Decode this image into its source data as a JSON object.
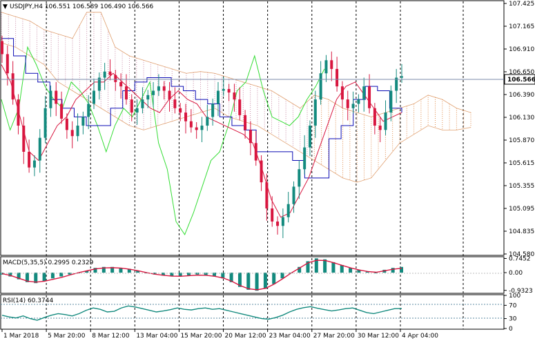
{
  "chart_data": [
    {
      "type": "candlestick",
      "title": "USDJPY,H4  106.551 106.589 106.490 106.566",
      "symbol": "USDJPY,H4",
      "ohlc_header": [
        "106.551",
        "106.589",
        "106.490",
        "106.566"
      ],
      "current_price": 106.566,
      "current_price_label": "106.566",
      "ylim": [
        104.52,
        107.425
      ],
      "y_ticks": [
        "107.425",
        "107.165",
        "106.910",
        "106.650",
        "106.390",
        "106.130",
        "105.870",
        "105.615",
        "105.355",
        "105.095",
        "104.835",
        "104.580"
      ],
      "x_ticks": [
        "1 Mar 2018",
        "5 Mar 20:00",
        "8 Mar 12:00",
        "13 Mar 04:00",
        "15 Mar 20:00",
        "20 Mar 12:00",
        "23 Mar 04:00",
        "27 Mar 20:00",
        "30 Mar 12:00",
        "4 Apr 04:00"
      ],
      "grid": true,
      "indicator": "Ichimoku",
      "colors": {
        "bull": "#138a7e",
        "bear": "#d8163f",
        "tenkan": "#d8163f",
        "kijun": "#0a0ab4",
        "chikou": "#33dd33",
        "cloud_bull": "#e08a4a",
        "cloud_bear": "#c88aa6",
        "price_line": "#7a8aa8"
      },
      "close_series": [
        106.82,
        106.6,
        106.3,
        106.0,
        105.7,
        105.52,
        105.6,
        105.86,
        106.2,
        106.4,
        106.25,
        106.08,
        105.95,
        105.88,
        106.0,
        106.1,
        106.25,
        106.4,
        106.55,
        106.62,
        106.58,
        106.5,
        106.45,
        106.3,
        106.15,
        106.2,
        106.3,
        106.35,
        106.4,
        106.45,
        106.4,
        106.3,
        106.2,
        106.15,
        106.05,
        105.98,
        105.95,
        106.0,
        106.1,
        106.25,
        106.4,
        106.42,
        106.38,
        106.3,
        106.12,
        105.95,
        105.8,
        105.6,
        105.35,
        105.05,
        104.9,
        104.85,
        104.95,
        105.1,
        105.3,
        105.5,
        105.75,
        106.0,
        106.3,
        106.6,
        106.75,
        106.65,
        106.45,
        106.3,
        106.2,
        106.25,
        106.3,
        106.45,
        106.2,
        106.0,
        105.95,
        106.15,
        106.4,
        106.55,
        106.566
      ],
      "tenkan_series": [
        106.7,
        106.5,
        106.1,
        105.7,
        105.6,
        105.8,
        106.0,
        106.1,
        106.3,
        106.4,
        106.5,
        106.5,
        106.6,
        106.5,
        106.4,
        106.3,
        106.2,
        106.15,
        106.3,
        106.4,
        106.3,
        106.25,
        106.1,
        106.05,
        106.0,
        105.95,
        105.9,
        105.8,
        105.5,
        105.15,
        104.95,
        105.0,
        105.2,
        105.4,
        105.7,
        106.0,
        106.3,
        106.45,
        106.5,
        106.35,
        106.2,
        106.05,
        106.1,
        106.15
      ],
      "kijun_series": [
        107.0,
        106.8,
        106.6,
        106.5,
        106.3,
        106.2,
        106.1,
        106.0,
        106.0,
        106.2,
        106.4,
        106.5,
        106.55,
        106.55,
        106.45,
        106.4,
        106.3,
        106.25,
        106.1,
        106.0,
        105.95,
        105.7,
        105.7,
        105.7,
        105.6,
        105.4,
        105.4,
        105.85,
        106.0,
        106.3,
        106.45,
        106.4,
        106.2,
        106.15
      ],
      "chikou_series": [
        106.3,
        105.95,
        106.2,
        106.9,
        106.7,
        106.45,
        106.3,
        106.2,
        106.5,
        106.4,
        106.25,
        106.0,
        105.7,
        106.0,
        106.2,
        106.1,
        106.3,
        106.5,
        105.8,
        105.5,
        104.9,
        104.75,
        105.0,
        105.3,
        105.6,
        105.7,
        106.0,
        106.4,
        106.5,
        106.8,
        106.4,
        106.1,
        106.05,
        106.0,
        106.1,
        106.3,
        106.45,
        106.65
      ],
      "cloud_upper": [
        107.3,
        107.25,
        107.2,
        107.1,
        107.05,
        107.0,
        107.3,
        107.3,
        106.9,
        106.8,
        106.75,
        106.7,
        106.65,
        106.6,
        106.62,
        106.6,
        106.55,
        106.5,
        106.45,
        106.4,
        106.3,
        106.2,
        106.35,
        106.3,
        106.2,
        106.15,
        106.1,
        106.15,
        106.2,
        106.25,
        106.35,
        106.3,
        106.2,
        106.15
      ],
      "cloud_lower": [
        106.95,
        106.9,
        106.8,
        106.7,
        106.5,
        106.4,
        106.3,
        106.2,
        106.1,
        106.0,
        105.95,
        106.0,
        106.05,
        106.1,
        106.15,
        106.2,
        106.1,
        106.05,
        106.0,
        105.9,
        105.8,
        105.7,
        105.6,
        105.5,
        105.4,
        105.35,
        105.4,
        105.6,
        105.8,
        105.9,
        106.0,
        105.95,
        105.95,
        105.98
      ]
    },
    {
      "type": "histogram",
      "title": "MACD(5,35,5) 0.2995 0.2329",
      "indicator": "MACD(5,35,5)",
      "values_header": [
        "0.2995",
        "0.2329"
      ],
      "ylim": [
        -1.05,
        0.8
      ],
      "y_ticks": [
        "0.7452",
        "0.00",
        "-0.9323"
      ],
      "histogram": [
        -0.1,
        -0.2,
        -0.35,
        -0.5,
        -0.55,
        -0.45,
        -0.3,
        -0.2,
        -0.1,
        0.0,
        0.1,
        0.25,
        0.3,
        0.3,
        0.25,
        0.2,
        0.1,
        0.0,
        -0.1,
        -0.15,
        -0.2,
        -0.2,
        -0.15,
        -0.1,
        -0.15,
        -0.2,
        -0.3,
        -0.5,
        -0.75,
        -0.9,
        -0.95,
        -0.85,
        -0.6,
        -0.3,
        0.0,
        0.3,
        0.6,
        0.75,
        0.7,
        0.55,
        0.4,
        0.25,
        0.15,
        0.05,
        0.0,
        0.15,
        0.25,
        0.3
      ],
      "signal": [
        -0.05,
        -0.15,
        -0.3,
        -0.45,
        -0.5,
        -0.45,
        -0.35,
        -0.25,
        -0.12,
        0.0,
        0.1,
        0.2,
        0.25,
        0.26,
        0.24,
        0.18,
        0.1,
        0.0,
        -0.08,
        -0.14,
        -0.18,
        -0.19,
        -0.16,
        -0.13,
        -0.14,
        -0.19,
        -0.28,
        -0.45,
        -0.68,
        -0.85,
        -0.9,
        -0.82,
        -0.6,
        -0.32,
        -0.02,
        0.25,
        0.52,
        0.65,
        0.64,
        0.52,
        0.38,
        0.25,
        0.14,
        0.06,
        0.02,
        0.1,
        0.18,
        0.23
      ],
      "colors": {
        "histogram": "#138a7e",
        "signal": "#d8163f"
      }
    },
    {
      "type": "line",
      "title": "RSI(14) 60.3744",
      "indicator": "RSI(14)",
      "value_header": "60.3744",
      "ylim": [
        0,
        100
      ],
      "levels": [
        70,
        30
      ],
      "y_ticks": [
        "100",
        "70",
        "30",
        "0"
      ],
      "values": [
        40,
        35,
        32,
        38,
        30,
        25,
        33,
        40,
        45,
        42,
        38,
        45,
        55,
        62,
        58,
        50,
        52,
        62,
        68,
        65,
        60,
        55,
        50,
        53,
        57,
        62,
        58,
        56,
        60,
        62,
        58,
        60,
        55,
        50,
        45,
        40,
        35,
        30,
        28,
        33,
        40,
        50,
        58,
        63,
        66,
        61,
        57,
        53,
        56,
        60,
        62,
        55,
        48,
        45,
        50,
        55,
        60,
        60.3744
      ],
      "colors": {
        "line": "#138a7e",
        "levels": "#5a8aa0"
      }
    }
  ]
}
